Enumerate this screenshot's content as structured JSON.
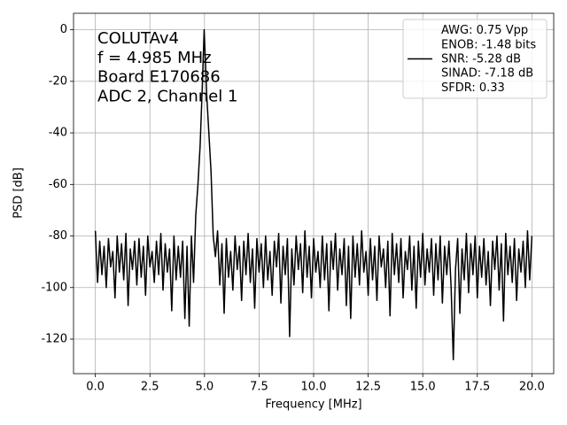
{
  "chart_data": {
    "type": "line",
    "annotation": [
      "COLUTAv4",
      "f = 4.985 MHz",
      "Board E170686",
      "ADC 2, Channel 1"
    ],
    "xlabel": "Frequency [MHz]",
    "ylabel": "PSD [dB]",
    "x": [
      0,
      0.1,
      0.2,
      0.3,
      0.4,
      0.5,
      0.6,
      0.7,
      0.8,
      0.9,
      1,
      1.1,
      1.2,
      1.3,
      1.4,
      1.5,
      1.6,
      1.7,
      1.8,
      1.9,
      2,
      2.1,
      2.2,
      2.3,
      2.4,
      2.5,
      2.6,
      2.7,
      2.8,
      2.9,
      3,
      3.1,
      3.2,
      3.3,
      3.4,
      3.5,
      3.6,
      3.7,
      3.8,
      3.9,
      4,
      4.1,
      4.2,
      4.3,
      4.4,
      4.5,
      4.6,
      4.7,
      4.8,
      4.9,
      4.985,
      5.1,
      5.2,
      5.3,
      5.4,
      5.5,
      5.6,
      5.7,
      5.8,
      5.9,
      6,
      6.1,
      6.2,
      6.3,
      6.4,
      6.5,
      6.6,
      6.7,
      6.8,
      6.9,
      7,
      7.1,
      7.2,
      7.3,
      7.4,
      7.5,
      7.6,
      7.7,
      7.8,
      7.9,
      8,
      8.1,
      8.2,
      8.3,
      8.4,
      8.5,
      8.6,
      8.7,
      8.8,
      8.9,
      9,
      9.1,
      9.2,
      9.3,
      9.4,
      9.5,
      9.6,
      9.7,
      9.8,
      9.9,
      10,
      10.1,
      10.2,
      10.3,
      10.4,
      10.5,
      10.6,
      10.7,
      10.8,
      10.9,
      11,
      11.1,
      11.2,
      11.3,
      11.4,
      11.5,
      11.6,
      11.7,
      11.8,
      11.9,
      12,
      12.1,
      12.2,
      12.3,
      12.4,
      12.5,
      12.6,
      12.7,
      12.8,
      12.9,
      13,
      13.1,
      13.2,
      13.3,
      13.4,
      13.5,
      13.6,
      13.7,
      13.8,
      13.9,
      14,
      14.1,
      14.2,
      14.3,
      14.4,
      14.5,
      14.6,
      14.7,
      14.8,
      14.9,
      15,
      15.1,
      15.2,
      15.3,
      15.4,
      15.5,
      15.6,
      15.7,
      15.8,
      15.9,
      16,
      16.1,
      16.2,
      16.3,
      16.4,
      16.5,
      16.6,
      16.7,
      16.8,
      16.9,
      17,
      17.1,
      17.2,
      17.3,
      17.4,
      17.5,
      17.6,
      17.7,
      17.8,
      17.9,
      18,
      18.1,
      18.2,
      18.3,
      18.4,
      18.5,
      18.6,
      18.7,
      18.8,
      18.9,
      19,
      19.1,
      19.2,
      19.3,
      19.4,
      19.5,
      19.6,
      19.7,
      19.8,
      19.9,
      20
    ],
    "series": [
      {
        "name": "AWG: 0.75 Vpp\nENOB: -1.48 bits\nSNR: -5.28 dB\nSINAD: -7.18 dB\nSFDR: 0.33",
        "color": "#000000",
        "values": [
          -78,
          -98,
          -82,
          -95,
          -84,
          -100,
          -81,
          -92,
          -86,
          -104,
          -80,
          -94,
          -83,
          -97,
          -79,
          -107,
          -85,
          -93,
          -82,
          -99,
          -81,
          -96,
          -84,
          -103,
          -80,
          -92,
          -86,
          -98,
          -82,
          -95,
          -79,
          -101,
          -83,
          -94,
          -85,
          -109,
          -80,
          -97,
          -84,
          -96,
          -82,
          -112,
          -84,
          -115,
          -80,
          -98,
          -72,
          -60,
          -45,
          -22,
          0,
          -25,
          -40,
          -55,
          -80,
          -88,
          -78,
          -99,
          -83,
          -110,
          -81,
          -96,
          -86,
          -101,
          -80,
          -93,
          -84,
          -105,
          -82,
          -95,
          -79,
          -98,
          -85,
          -108,
          -81,
          -94,
          -83,
          -100,
          -80,
          -97,
          -86,
          -103,
          -82,
          -92,
          -79,
          -106,
          -84,
          -95,
          -81,
          -119,
          -85,
          -99,
          -80,
          -93,
          -83,
          -102,
          -78,
          -96,
          -84,
          -104,
          -81,
          -94,
          -86,
          -100,
          -80,
          -97,
          -83,
          -109,
          -82,
          -93,
          -79,
          -101,
          -85,
          -95,
          -81,
          -107,
          -84,
          -112,
          -80,
          -96,
          -83,
          -99,
          -78,
          -94,
          -86,
          -103,
          -81,
          -97,
          -84,
          -105,
          -80,
          -92,
          -85,
          -100,
          -82,
          -111,
          -79,
          -95,
          -83,
          -98,
          -81,
          -104,
          -86,
          -93,
          -80,
          -101,
          -84,
          -108,
          -82,
          -96,
          -79,
          -99,
          -85,
          -94,
          -81,
          -103,
          -83,
          -97,
          -80,
          -106,
          -84,
          -95,
          -82,
          -100,
          -128,
          -93,
          -81,
          -110,
          -85,
          -97,
          -79,
          -102,
          -83,
          -95,
          -80,
          -104,
          -84,
          -96,
          -81,
          -99,
          -86,
          -107,
          -82,
          -93,
          -80,
          -101,
          -83,
          -113,
          -79,
          -95,
          -84,
          -98,
          -81,
          -105,
          -85,
          -94,
          -82,
          -100,
          -78,
          -97,
          -80
        ]
      }
    ],
    "xlim": [
      -1,
      21
    ],
    "ylim": [
      -133.4,
      6.4
    ],
    "xticks": [
      {
        "value": 0,
        "label": "0.0"
      },
      2.5,
      {
        "value": 5,
        "label": "5.0"
      },
      7.5,
      {
        "value": 10,
        "label": "10.0"
      },
      12.5,
      {
        "value": 15,
        "label": "15.0"
      },
      17.5,
      {
        "value": 20,
        "label": "20.0"
      }
    ],
    "yticks": [
      0,
      -20,
      -40,
      -60,
      -80,
      -100,
      -120
    ],
    "grid": true,
    "legend": "upper right"
  }
}
